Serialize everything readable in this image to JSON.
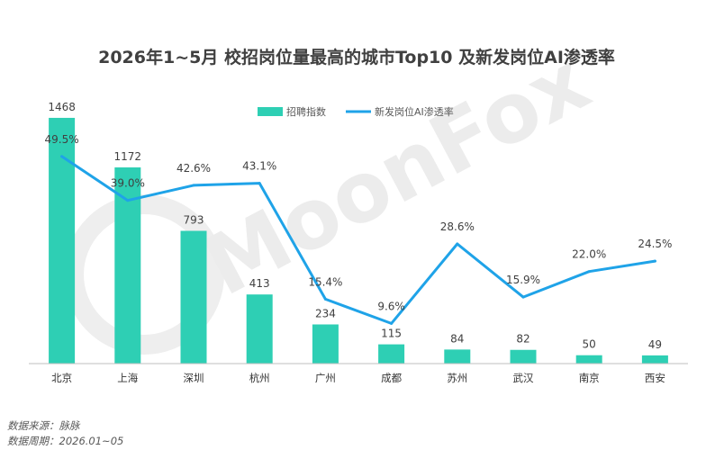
{
  "chart_data": {
    "type": "bar",
    "title": "2026年1~5月 校招岗位量最高的城市Top10 及新发岗位AI渗透率",
    "categories": [
      "北京",
      "上海",
      "深圳",
      "杭州",
      "广州",
      "成都",
      "苏州",
      "武汉",
      "南京",
      "西安"
    ],
    "series": [
      {
        "name": "招聘指数",
        "type": "bar",
        "values": [
          1468,
          1172,
          793,
          413,
          234,
          115,
          84,
          82,
          50,
          49
        ],
        "labels": [
          "1468",
          "1172",
          "793",
          "413",
          "234",
          "115",
          "84",
          "82",
          "50",
          "49"
        ],
        "color": "#2ecfb4"
      },
      {
        "name": "新发岗位AI渗透率",
        "type": "line",
        "values": [
          49.5,
          39.0,
          42.6,
          43.1,
          15.4,
          9.6,
          28.6,
          15.9,
          22.0,
          24.5
        ],
        "labels": [
          "49.5%",
          "39.0%",
          "42.6%",
          "43.1%",
          "15.4%",
          "9.6%",
          "28.6%",
          "15.9%",
          "22.0%",
          "24.5%"
        ],
        "color": "#1fa3e8",
        "unit": "%"
      }
    ],
    "ylim": [
      0,
      1500
    ],
    "y2lim": [
      0,
      60
    ],
    "legend_position": "top-center",
    "grid": false
  },
  "footer": {
    "source": "数据来源：脉脉",
    "period": "数据周期：2026.01~05"
  },
  "watermark": {
    "text": "MoonFox"
  },
  "colors": {
    "bar": "#2ecfb4",
    "line": "#1fa3e8",
    "watermark": "#ececec"
  }
}
